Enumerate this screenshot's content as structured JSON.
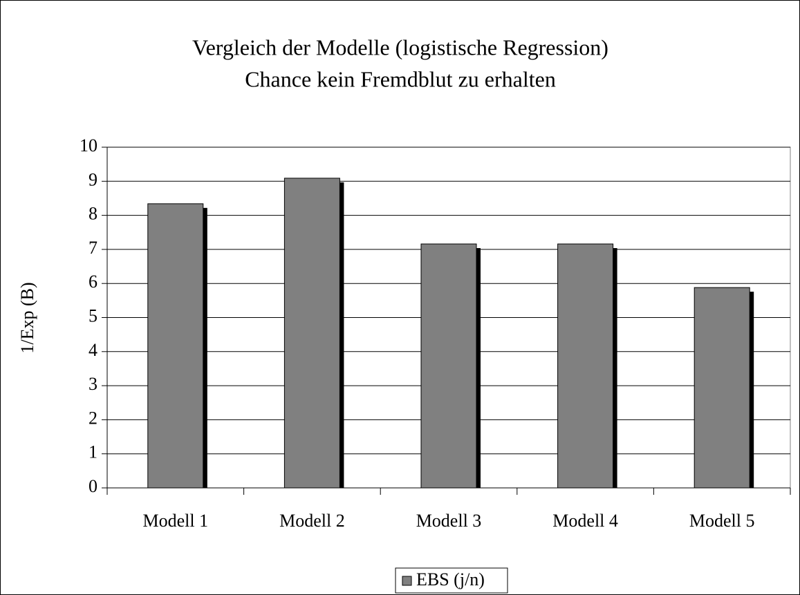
{
  "chart_data": {
    "type": "bar",
    "title": "Vergleich der Modelle (logistische Regression)",
    "subtitle": "Chance kein Fremdblut zu erhalten",
    "y_label": "1/Exp (B)",
    "categories": [
      "Modell 1",
      "Modell 2",
      "Modell 3",
      "Modell 4",
      "Modell 5"
    ],
    "series": [
      {
        "name": "EBS (j/n)",
        "color": "#808080",
        "values": [
          8.34,
          9.09,
          7.16,
          7.16,
          5.88
        ]
      }
    ],
    "ylim": [
      0,
      10
    ],
    "yticks": [
      0,
      1,
      2,
      3,
      4,
      5,
      6,
      7,
      8,
      9,
      10
    ],
    "grid": true,
    "legend": "bottom"
  }
}
